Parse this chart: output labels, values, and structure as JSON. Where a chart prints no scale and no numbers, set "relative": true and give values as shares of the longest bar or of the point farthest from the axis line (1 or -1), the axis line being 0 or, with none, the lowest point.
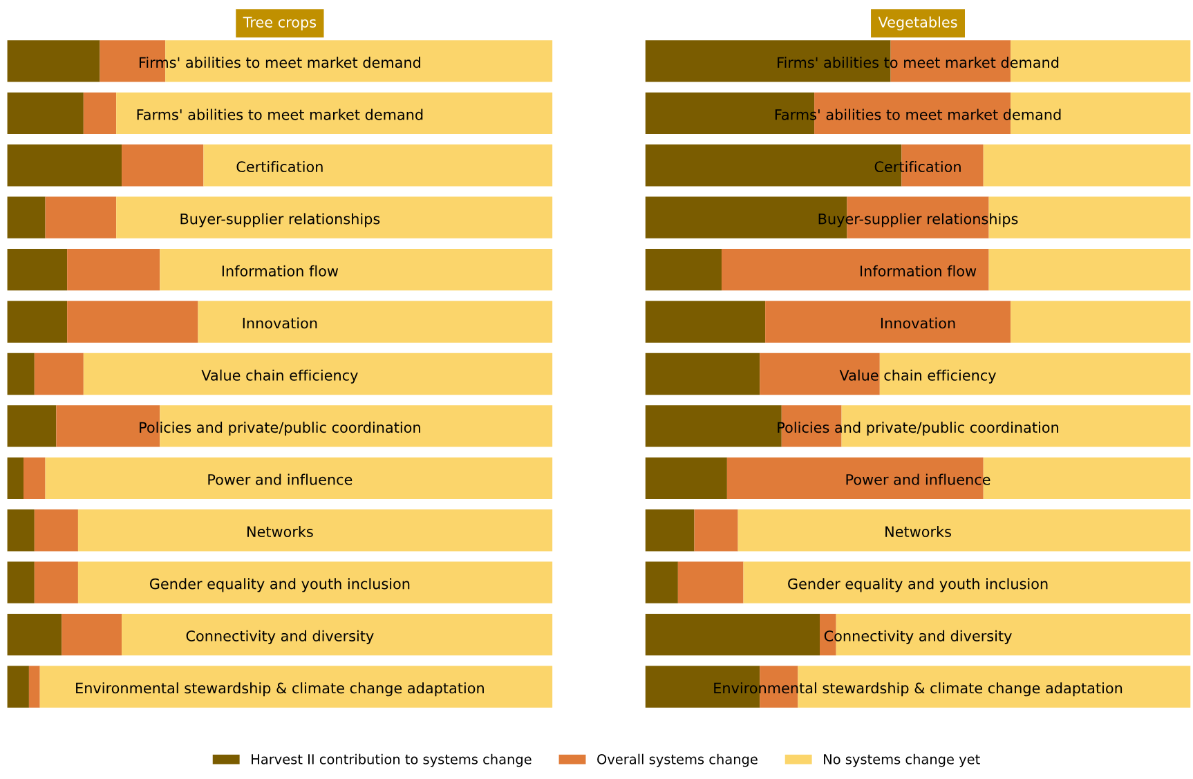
{
  "chart_data": [
    {
      "type": "bar",
      "orientation": "horizontal",
      "stacked": true,
      "relative": true,
      "title": "Tree crops",
      "legend": "bottom",
      "categories": [
        "Firms' abilities to meet market demand",
        "Farms' abilities to meet market demand",
        "Certification",
        "Buyer-supplier relationships",
        "Information flow",
        "Innovation",
        "Value chain efficiency",
        "Policies and private/public coordination",
        "Power and influence",
        "Networks",
        "Gender equality and youth inclusion",
        "Connectivity and diversity",
        "Environmental stewardship & climate change adaptation"
      ],
      "series": [
        {
          "name": "Harvest II contribution to systems change",
          "color": "#7a5c00",
          "values": [
            0.17,
            0.14,
            0.21,
            0.07,
            0.11,
            0.11,
            0.05,
            0.09,
            0.03,
            0.05,
            0.05,
            0.1,
            0.04
          ]
        },
        {
          "name": "Overall systems change",
          "color": "#e07b39",
          "values": [
            0.12,
            0.06,
            0.15,
            0.13,
            0.17,
            0.24,
            0.09,
            0.19,
            0.04,
            0.08,
            0.08,
            0.11,
            0.02
          ]
        },
        {
          "name": "No systems change yet",
          "color": "#fbd56b",
          "values": [
            0.71,
            0.8,
            0.64,
            0.8,
            0.72,
            0.65,
            0.86,
            0.72,
            0.93,
            0.87,
            0.87,
            0.79,
            0.94
          ]
        }
      ]
    },
    {
      "type": "bar",
      "orientation": "horizontal",
      "stacked": true,
      "relative": true,
      "title": "Vegetables",
      "categories": [
        "Firms' abilities to meet market demand",
        "Farms' abilities to meet market demand",
        "Certification",
        "Buyer-supplier relationships",
        "Information flow",
        "Innovation",
        "Value chain efficiency",
        "Policies and private/public coordination",
        "Power and influence",
        "Networks",
        "Gender equality and youth inclusion",
        "Connectivity and diversity",
        "Environmental stewardship & climate change adaptation"
      ],
      "series": [
        {
          "color": "#7a5c00",
          "values": [
            0.45,
            0.31,
            0.47,
            0.37,
            0.14,
            0.22,
            0.21,
            0.25,
            0.15,
            0.09,
            0.06,
            0.32,
            0.21
          ]
        },
        {
          "color": "#e07b39",
          "values": [
            0.22,
            0.36,
            0.15,
            0.26,
            0.49,
            0.45,
            0.22,
            0.11,
            0.47,
            0.08,
            0.12,
            0.03,
            0.07
          ]
        },
        {
          "color": "#fbd56b",
          "values": [
            0.33,
            0.33,
            0.38,
            0.37,
            0.37,
            0.33,
            0.57,
            0.64,
            0.38,
            0.83,
            0.82,
            0.65,
            0.72
          ]
        }
      ]
    }
  ]
}
